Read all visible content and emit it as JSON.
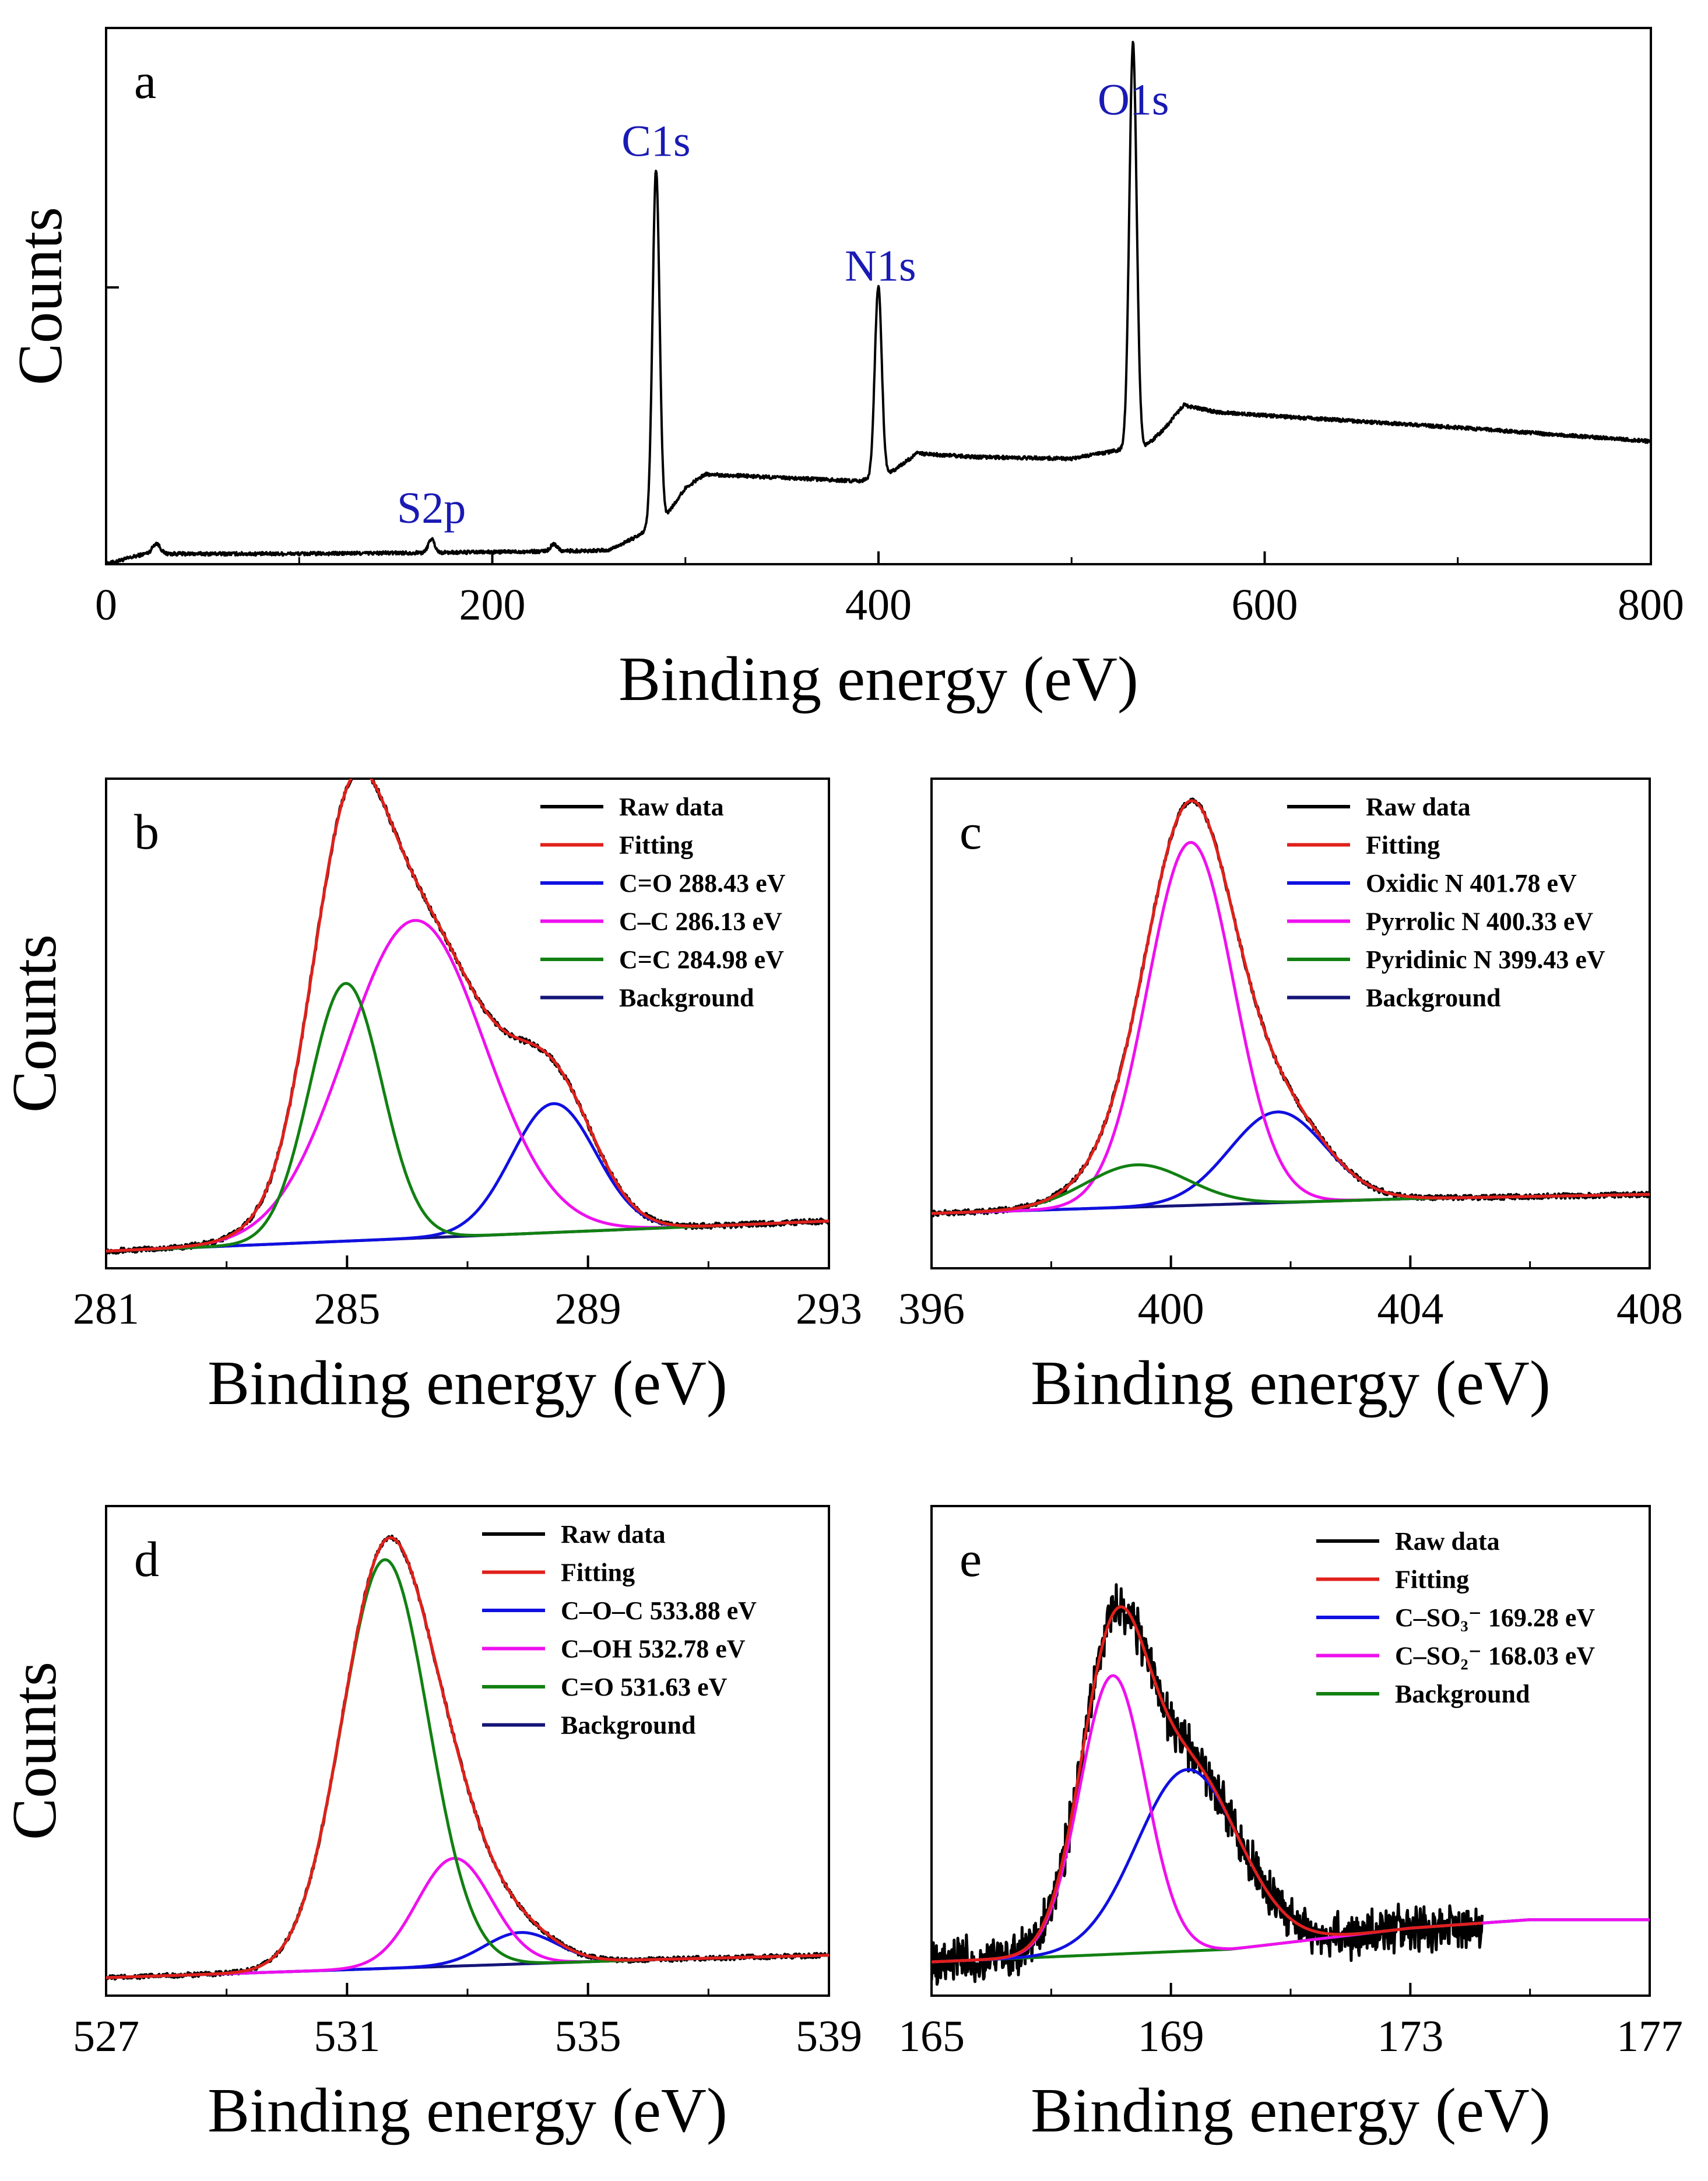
{
  "colors": {
    "raw": "#000000",
    "fitting": "#e0201b",
    "blue": "#1010e0",
    "magenta": "#ee10ee",
    "green": "#128012",
    "background_line": "#141478",
    "peak_label": "#1a1ab4"
  },
  "chart_data": [
    {
      "id": "a",
      "type": "line",
      "panel_label": "a",
      "xlabel": "Binding energy (eV)",
      "ylabel": "Counts",
      "xlim": [
        0,
        800
      ],
      "ylim": [
        0,
        1.55
      ],
      "xticks": [
        "0",
        "200",
        "400",
        "600",
        "800"
      ],
      "ytick_major": [
        0.8
      ],
      "raw": {
        "baseline": [
          [
            0,
            0.0
          ],
          [
            20,
            0.03
          ],
          [
            100,
            0.03
          ],
          [
            200,
            0.035
          ],
          [
            260,
            0.04
          ],
          [
            275,
            0.08
          ],
          [
            290,
            0.14
          ],
          [
            300,
            0.22
          ],
          [
            310,
            0.26
          ],
          [
            350,
            0.25
          ],
          [
            390,
            0.24
          ],
          [
            405,
            0.26
          ],
          [
            420,
            0.32
          ],
          [
            450,
            0.31
          ],
          [
            500,
            0.305
          ],
          [
            525,
            0.33
          ],
          [
            538,
            0.34
          ],
          [
            548,
            0.39
          ],
          [
            558,
            0.46
          ],
          [
            575,
            0.44
          ],
          [
            600,
            0.43
          ],
          [
            700,
            0.395
          ],
          [
            800,
            0.355
          ]
        ],
        "peaks": [
          {
            "center": 284.8,
            "height": 1.02,
            "width": 1.8
          },
          {
            "center": 399.9,
            "height": 0.55,
            "width": 1.8
          },
          {
            "center": 531.8,
            "height": 1.17,
            "width": 1.9
          },
          {
            "center": 168.5,
            "height": 0.04,
            "width": 1.6
          },
          {
            "center": 26.0,
            "height": 0.03,
            "width": 2.0
          },
          {
            "center": 232.0,
            "height": 0.02,
            "width": 1.8
          }
        ],
        "noise": 0.005
      },
      "annotations": [
        {
          "text": "C1s",
          "x": 284.8,
          "y": 1.18
        },
        {
          "text": "N1s",
          "x": 401.0,
          "y": 0.82
        },
        {
          "text": "O1s",
          "x": 532.0,
          "y": 1.3
        },
        {
          "text": "S2p",
          "x": 168.5,
          "y": 0.12
        }
      ]
    },
    {
      "id": "b",
      "type": "line",
      "panel_label": "b",
      "xlabel": "Binding energy (eV)",
      "ylabel": "Counts",
      "xlim": [
        281,
        293
      ],
      "ylim": [
        -0.04,
        1.1
      ],
      "xticks": [
        "281",
        "285",
        "289",
        "293"
      ],
      "background": [
        [
          281,
          0.0
        ],
        [
          293,
          0.07
        ]
      ],
      "components": [
        {
          "name": "C=O 288.43 eV",
          "color": "blue",
          "center": 288.43,
          "height": 0.3,
          "sigma": 0.7
        },
        {
          "name": "C–C 286.13 eV",
          "color": "magenta",
          "center": 286.13,
          "height": 0.74,
          "sigma": 1.15
        },
        {
          "name": "C=C 284.98 eV",
          "color": "green",
          "center": 284.98,
          "height": 0.6,
          "sigma": 0.6
        }
      ],
      "noise": 0.006,
      "raw_range": [
        281,
        293
      ],
      "legend": [
        "Raw data",
        "Fitting",
        "C=O 288.43 eV",
        "C–C 286.13 eV",
        "C=C 284.98 eV",
        "Background"
      ]
    },
    {
      "id": "c",
      "type": "line",
      "panel_label": "c",
      "xlabel": "Binding energy (eV)",
      "ylabel": "",
      "xlim": [
        396,
        408
      ],
      "ylim": [
        -0.13,
        1.03
      ],
      "xticks": [
        "396",
        "400",
        "404",
        "408"
      ],
      "background": [
        [
          396,
          0.0
        ],
        [
          404,
          0.035
        ],
        [
          408,
          0.045
        ]
      ],
      "components": [
        {
          "name": "Oxidic N 401.78 eV",
          "color": "blue",
          "center": 401.78,
          "height": 0.215,
          "sigma": 0.8
        },
        {
          "name": "Pyrrolic N 400.33 eV",
          "color": "magenta",
          "center": 400.33,
          "height": 0.86,
          "sigma": 0.72
        },
        {
          "name": "Pyridinic N 399.43 eV",
          "color": "green",
          "center": 399.43,
          "height": 0.1,
          "sigma": 0.85
        }
      ],
      "noise": 0.006,
      "raw_range": [
        396,
        408
      ],
      "legend": [
        "Raw data",
        "Fitting",
        "Oxidic N 401.78 eV",
        "Pyrrolic N 400.33 eV",
        "Pyridinic N 399.43 eV",
        "Background"
      ]
    },
    {
      "id": "d",
      "type": "line",
      "panel_label": "d",
      "xlabel": "Binding energy (eV)",
      "ylabel": "Counts",
      "xlim": [
        527,
        539
      ],
      "ylim": [
        -0.04,
        1.05
      ],
      "xticks": [
        "527",
        "531",
        "535",
        "539"
      ],
      "background": [
        [
          527,
          0.0
        ],
        [
          536,
          0.04
        ],
        [
          539,
          0.05
        ]
      ],
      "components": [
        {
          "name": "C–O–C 533.88 eV",
          "color": "blue",
          "center": 533.88,
          "height": 0.07,
          "sigma": 0.6
        },
        {
          "name": "C–OH 532.78 eV",
          "color": "magenta",
          "center": 532.78,
          "height": 0.24,
          "sigma": 0.62
        },
        {
          "name": "C=O 531.63 eV",
          "color": "green",
          "center": 531.63,
          "height": 0.91,
          "sigma": 0.72
        }
      ],
      "noise": 0.005,
      "raw_range": [
        527,
        539
      ],
      "legend": [
        "Raw data",
        "Fitting",
        "C–O–C 533.88 eV",
        "C–OH 532.78 eV",
        "C=O 531.63 eV",
        "Background"
      ]
    },
    {
      "id": "e",
      "type": "line",
      "panel_label": "e",
      "xlabel": "Binding energy (eV)",
      "ylabel": "",
      "xlim": [
        165,
        177
      ],
      "ylim": [
        -0.08,
        1.08
      ],
      "xticks": [
        "165",
        "169",
        "173",
        "177"
      ],
      "background": [
        [
          165,
          0.0
        ],
        [
          170,
          0.03
        ],
        [
          173,
          0.08
        ],
        [
          175,
          0.1
        ]
      ],
      "background_range": [
        165,
        175
      ],
      "components": [
        {
          "name": "C–SO₃⁻ 169.28 eV",
          "color": "blue",
          "center": 169.28,
          "height": 0.43,
          "sigma": 0.85
        },
        {
          "name": "C–SO₂⁻ 168.03 eV",
          "color": "magenta",
          "center": 168.03,
          "height": 0.66,
          "sigma": 0.55
        }
      ],
      "noise": 0.045,
      "raw_range": [
        165,
        174.2
      ],
      "legend": [
        "Raw data",
        "Fitting",
        "C–SO₃⁻ 169.28 eV",
        "C–SO₂⁻ 168.03 eV",
        "Background"
      ]
    }
  ]
}
